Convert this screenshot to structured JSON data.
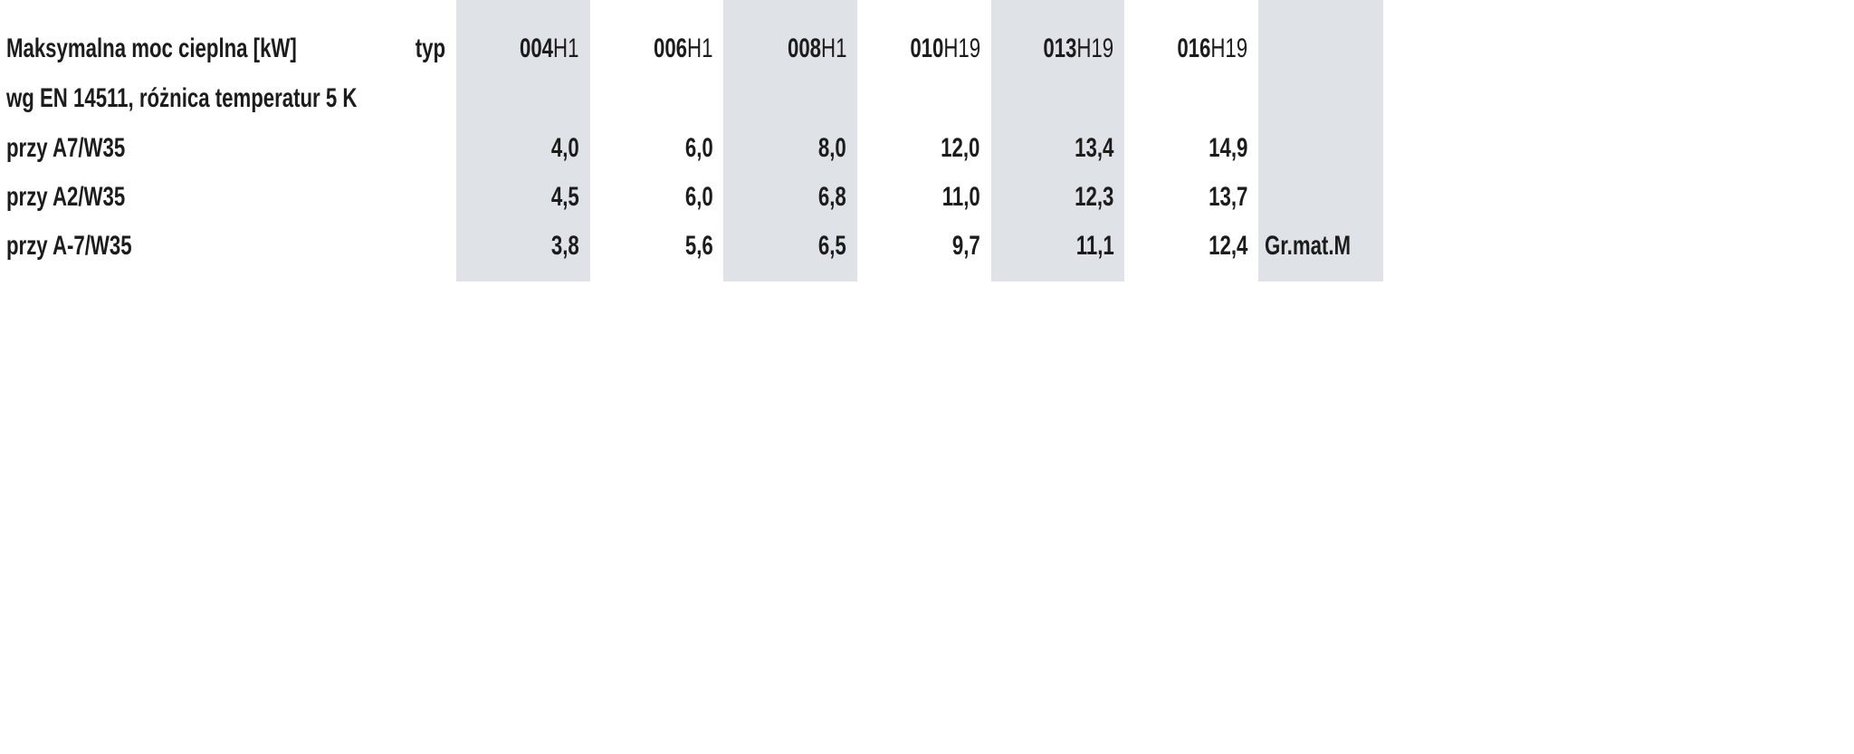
{
  "table": {
    "title_lines": [
      "Maksymalna moc cieplna [kW]",
      "wg EN 14511, różnica temperatur 5 K"
    ],
    "type_label": "typ",
    "models": [
      {
        "code": "004",
        "suffix": "H1"
      },
      {
        "code": "006",
        "suffix": "H1"
      },
      {
        "code": "008",
        "suffix": "H1"
      },
      {
        "code": "010",
        "suffix": "H19"
      },
      {
        "code": "013",
        "suffix": "H19"
      },
      {
        "code": "016",
        "suffix": "H19"
      }
    ],
    "rows": [
      {
        "label": "przy A7/W35",
        "values": [
          "4,0",
          "6,0",
          "8,0",
          "12,0",
          "13,4",
          "14,9"
        ]
      },
      {
        "label": "przy A2/W35",
        "values": [
          "4,5",
          "6,0",
          "6,8",
          "11,0",
          "12,3",
          "13,7"
        ]
      },
      {
        "label": "przy A-7/W35",
        "values": [
          "3,8",
          "5,6",
          "6,5",
          "9,7",
          "11,1",
          "12,4"
        ]
      }
    ],
    "note": "Gr.mat.M"
  }
}
